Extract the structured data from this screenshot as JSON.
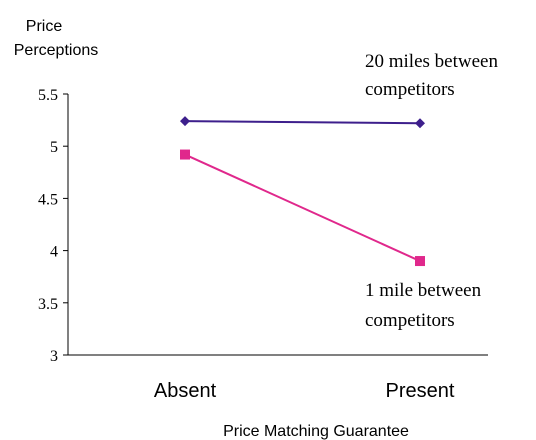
{
  "chart_data": {
    "type": "line",
    "title": "",
    "ylabel_lines": [
      "Price",
      "Perceptions"
    ],
    "xlabel": "Price Matching Guarantee",
    "categories": [
      "Absent",
      "Present"
    ],
    "ylim": [
      3,
      5.5
    ],
    "yticks": [
      3,
      3.5,
      4,
      4.5,
      5,
      5.5
    ],
    "ytick_labels": [
      "3",
      "3.5",
      "4",
      "4.5",
      "5",
      "5.5"
    ],
    "grid": false,
    "series": [
      {
        "name": "20 miles between competitors",
        "label_lines": [
          "20 miles between",
          "competitors"
        ],
        "values": [
          5.24,
          5.22
        ],
        "color": "#3d1f8c",
        "marker": "diamond"
      },
      {
        "name": "1 mile between competitors",
        "label_lines": [
          "1 mile between",
          "competitors"
        ],
        "values": [
          4.92,
          3.9
        ],
        "color": "#e0288c",
        "marker": "square"
      }
    ]
  }
}
